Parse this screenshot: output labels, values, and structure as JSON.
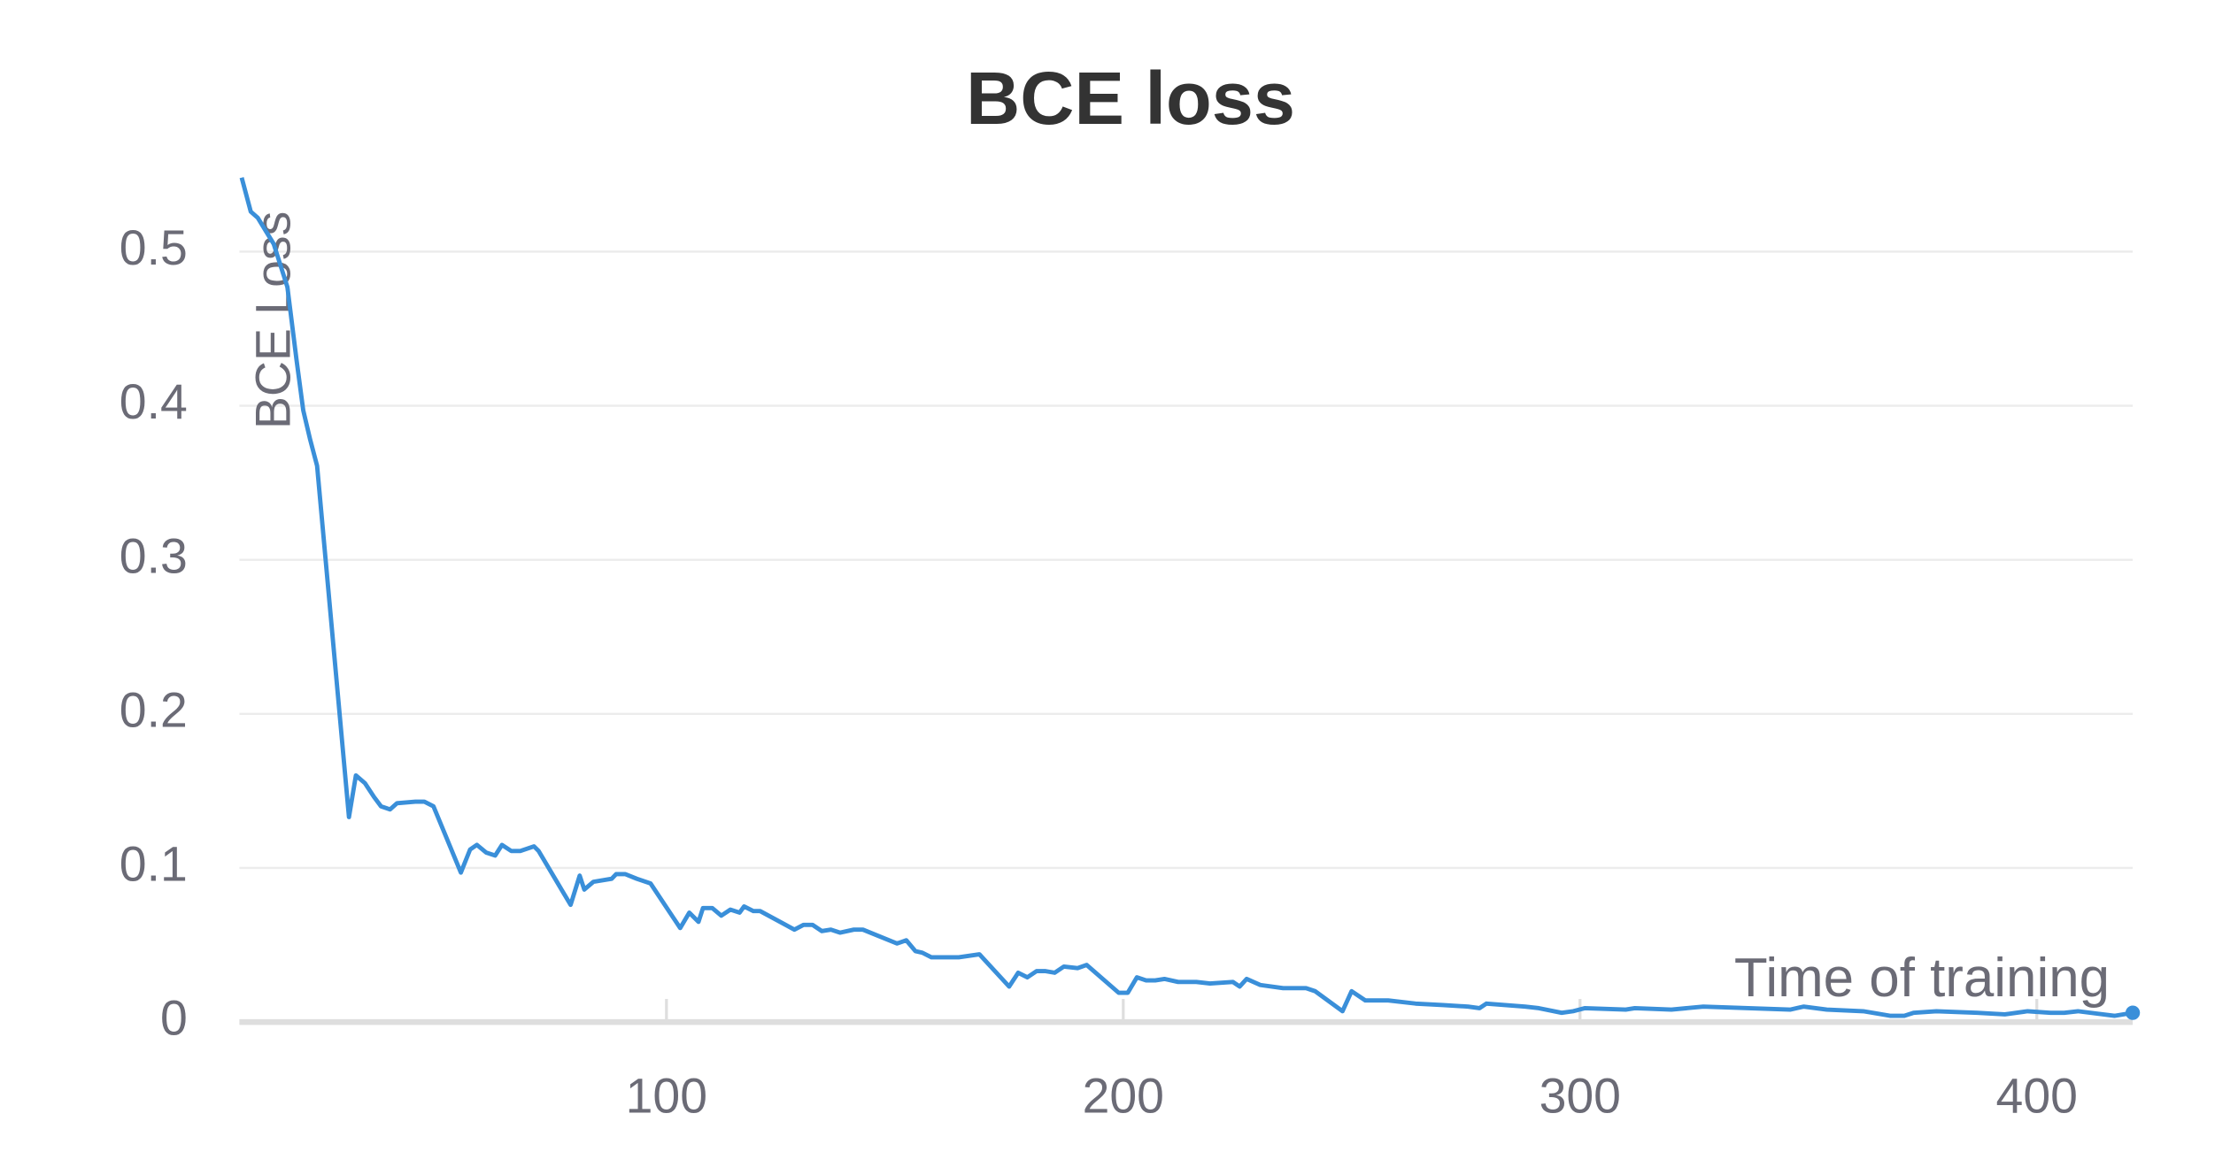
{
  "chart_data": {
    "type": "line",
    "title": "BCE loss",
    "x_label": "Time of training",
    "y_label": "BCE Loss",
    "x": [
      7,
      9,
      10.5,
      14,
      17,
      19,
      20.5,
      22,
      23.5,
      30.5,
      32,
      34,
      36,
      37.5,
      39.5,
      41,
      45,
      47,
      49,
      55,
      57,
      58.5,
      60.5,
      62.5,
      64,
      66,
      68,
      71,
      72,
      79,
      81,
      82,
      84,
      88,
      89,
      91,
      93.5,
      96.5,
      103,
      105,
      107,
      108,
      110,
      112,
      114,
      116,
      117,
      119,
      120.5,
      128,
      130,
      132,
      134,
      136,
      138,
      141,
      143,
      150.5,
      152.5,
      154.5,
      156,
      158,
      164,
      168.5,
      175,
      177,
      179,
      181,
      183,
      185,
      187,
      190,
      192,
      199,
      201,
      203,
      205,
      207,
      209,
      212,
      216,
      219,
      224,
      225.5,
      227,
      230,
      235,
      240,
      242,
      248,
      250,
      253,
      258,
      264,
      270,
      275.5,
      278,
      279.5,
      288,
      291,
      296,
      298.5,
      301,
      310,
      312,
      320,
      327,
      346,
      349,
      354,
      362,
      368,
      371,
      373,
      378,
      387,
      393,
      398,
      403,
      406,
      409,
      417,
      421
    ],
    "values": [
      0.548,
      0.526,
      0.522,
      0.505,
      0.477,
      0.43,
      0.397,
      0.378,
      0.361,
      0.133,
      0.16,
      0.155,
      0.146,
      0.14,
      0.138,
      0.142,
      0.143,
      0.143,
      0.14,
      0.097,
      0.112,
      0.115,
      0.11,
      0.108,
      0.115,
      0.111,
      0.111,
      0.114,
      0.111,
      0.076,
      0.095,
      0.086,
      0.091,
      0.093,
      0.096,
      0.096,
      0.093,
      0.09,
      0.061,
      0.071,
      0.065,
      0.074,
      0.074,
      0.069,
      0.073,
      0.071,
      0.075,
      0.072,
      0.072,
      0.06,
      0.063,
      0.063,
      0.059,
      0.06,
      0.058,
      0.06,
      0.06,
      0.051,
      0.053,
      0.046,
      0.045,
      0.042,
      0.042,
      0.044,
      0.023,
      0.032,
      0.029,
      0.033,
      0.033,
      0.032,
      0.036,
      0.035,
      0.037,
      0.019,
      0.019,
      0.029,
      0.027,
      0.027,
      0.028,
      0.026,
      0.026,
      0.025,
      0.026,
      0.023,
      0.028,
      0.024,
      0.022,
      0.022,
      0.02,
      0.007,
      0.02,
      0.014,
      0.014,
      0.012,
      0.011,
      0.01,
      0.009,
      0.012,
      0.01,
      0.009,
      0.006,
      0.007,
      0.009,
      0.008,
      0.009,
      0.008,
      0.01,
      0.008,
      0.01,
      0.008,
      0.007,
      0.004,
      0.004,
      0.006,
      0.007,
      0.006,
      0.005,
      0.007,
      0.006,
      0.006,
      0.007,
      0.004,
      0.006
    ],
    "color": "#3a8fd9",
    "xlim": [
      6.5,
      421
    ],
    "ylim": [
      0,
      0.55
    ],
    "xticks": [
      100,
      200,
      300,
      400
    ],
    "yticks": [
      0,
      0.1,
      0.2,
      0.3,
      0.4,
      0.5
    ],
    "grid": true
  }
}
